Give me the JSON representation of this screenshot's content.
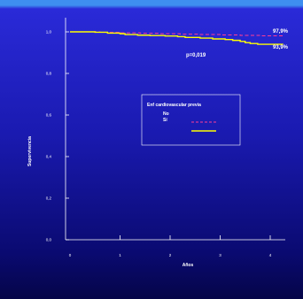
{
  "chart_data": {
    "type": "line",
    "xlabel": "Años",
    "ylabel": "Supervivencia",
    "xlim": [
      0,
      4.3
    ],
    "ylim": [
      0,
      1.0
    ],
    "x_ticks": [
      "0",
      "1",
      "2",
      "3",
      "4"
    ],
    "y_ticks": [
      "0,0",
      "0,2",
      "0,4",
      "0,6",
      "0,8",
      "1,0"
    ],
    "grid": false,
    "legend": {
      "title": "Enf cardiovascular previa",
      "placement": "center-right",
      "entries": [
        {
          "label": "No",
          "color": "#ff3c96",
          "style": "dashed"
        },
        {
          "label": "Sí",
          "color": "#ffff00",
          "style": "solid"
        }
      ]
    },
    "annotations": {
      "p_value": "p=0,019",
      "no_final": "97,9%",
      "si_final": "93,9%"
    },
    "series": [
      {
        "label_ref": "No",
        "color": "#ff3c96",
        "style": "dashed",
        "points": [
          [
            0,
            1.0
          ],
          [
            0.6,
            0.998
          ],
          [
            1.0,
            0.995
          ],
          [
            1.4,
            0.993
          ],
          [
            1.8,
            0.991
          ],
          [
            2.2,
            0.989
          ],
          [
            2.6,
            0.987
          ],
          [
            3.0,
            0.985
          ],
          [
            3.4,
            0.983
          ],
          [
            3.8,
            0.981
          ],
          [
            4.25,
            0.979
          ]
        ]
      },
      {
        "label_ref": "Sí",
        "color": "#ffff00",
        "style": "solid",
        "points": [
          [
            0,
            1.0
          ],
          [
            0.5,
            0.998
          ],
          [
            0.75,
            0.994
          ],
          [
            1.0,
            0.991
          ],
          [
            1.1,
            0.987
          ],
          [
            1.35,
            0.984
          ],
          [
            1.6,
            0.982
          ],
          [
            1.9,
            0.98
          ],
          [
            2.15,
            0.977
          ],
          [
            2.3,
            0.973
          ],
          [
            2.6,
            0.97
          ],
          [
            2.85,
            0.966
          ],
          [
            3.1,
            0.963
          ],
          [
            3.25,
            0.959
          ],
          [
            3.4,
            0.954
          ],
          [
            3.5,
            0.948
          ],
          [
            3.6,
            0.944
          ],
          [
            3.75,
            0.94
          ],
          [
            4.25,
            0.939
          ]
        ]
      }
    ]
  }
}
